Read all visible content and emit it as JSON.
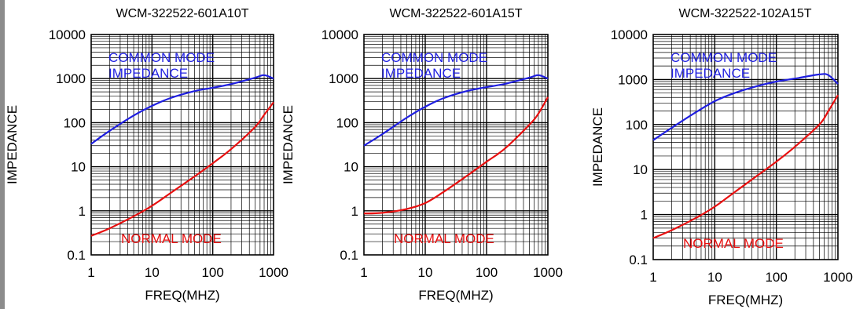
{
  "colors": {
    "common_mode": "#1f1fe0",
    "normal_mode": "#e81010",
    "grid": "#000000",
    "frame_bar": "#8c8c8c"
  },
  "chart_data": [
    {
      "type": "line",
      "title": "WCM-322522-601A10T",
      "xlabel": "FREQ(MHZ)",
      "ylabel": "IMPEDANCE",
      "xscale": "log",
      "yscale": "log",
      "xlim": [
        1,
        1000
      ],
      "ylim": [
        0.1,
        10000
      ],
      "xticks": [
        "1",
        "10",
        "100",
        "1000"
      ],
      "yticks": [
        "0.1",
        "1",
        "10",
        "100",
        "1000",
        "10000"
      ],
      "grid": true,
      "annotations": [
        "COMMON MODE",
        "IMPEDANCE",
        "NORMAL MODE"
      ],
      "series": [
        {
          "key": "common",
          "x": [
            1,
            2,
            5,
            10,
            20,
            50,
            100,
            200,
            500,
            700,
            1000
          ],
          "y": [
            33,
            65,
            145,
            240,
            360,
            520,
            620,
            750,
            1050,
            1200,
            1000
          ]
        },
        {
          "key": "normal",
          "x": [
            1,
            2,
            5,
            10,
            20,
            50,
            100,
            200,
            500,
            700,
            1000
          ],
          "y": [
            0.27,
            0.4,
            0.75,
            1.3,
            2.5,
            6,
            12,
            25,
            80,
            150,
            290
          ]
        }
      ]
    },
    {
      "type": "line",
      "title": "WCM-322522-601A15T",
      "xlabel": "FREQ(MHZ)",
      "ylabel": "IMPEDANCE",
      "xscale": "log",
      "yscale": "log",
      "xlim": [
        1,
        1000
      ],
      "ylim": [
        0.1,
        10000
      ],
      "xticks": [
        "1",
        "10",
        "100",
        "1000"
      ],
      "yticks": [
        "0.1",
        "1",
        "10",
        "100",
        "1000",
        "10000"
      ],
      "grid": true,
      "annotations": [
        "COMMON MODE",
        "IMPEDANCE",
        "NORMAL MODE"
      ],
      "series": [
        {
          "key": "common",
          "x": [
            1,
            2,
            5,
            10,
            20,
            50,
            100,
            200,
            500,
            700,
            1000
          ],
          "y": [
            30,
            55,
            130,
            230,
            360,
            530,
            640,
            760,
            1050,
            1200,
            1000
          ]
        },
        {
          "key": "normal",
          "x": [
            1,
            2,
            5,
            10,
            20,
            50,
            100,
            200,
            500,
            700,
            1000
          ],
          "y": [
            0.87,
            0.9,
            1.1,
            1.5,
            2.7,
            6.5,
            13,
            26,
            90,
            160,
            380
          ]
        }
      ]
    },
    {
      "type": "line",
      "title": "WCM-322522-102A15T",
      "xlabel": "FREQ(MHZ)",
      "ylabel": "IMPEDANCE",
      "xscale": "log",
      "yscale": "log",
      "xlim": [
        1,
        1000
      ],
      "ylim": [
        0.1,
        10000
      ],
      "xticks": [
        "1",
        "10",
        "100",
        "1000"
      ],
      "yticks": [
        "0.1",
        "1",
        "10",
        "100",
        "1000",
        "10000"
      ],
      "grid": true,
      "annotations": [
        "COMMON MODE",
        "IMPEDANCE",
        "NORMAL MODE"
      ],
      "series": [
        {
          "key": "common",
          "x": [
            1,
            2,
            5,
            10,
            20,
            50,
            100,
            200,
            500,
            700,
            1000
          ],
          "y": [
            45,
            85,
            190,
            330,
            490,
            720,
            900,
            1050,
            1300,
            1250,
            800
          ]
        },
        {
          "key": "normal",
          "x": [
            1,
            2,
            5,
            10,
            20,
            50,
            100,
            200,
            500,
            700,
            1000
          ],
          "y": [
            0.3,
            0.45,
            0.85,
            1.5,
            3,
            7.5,
            15,
            32,
            100,
            200,
            450
          ]
        }
      ]
    }
  ]
}
